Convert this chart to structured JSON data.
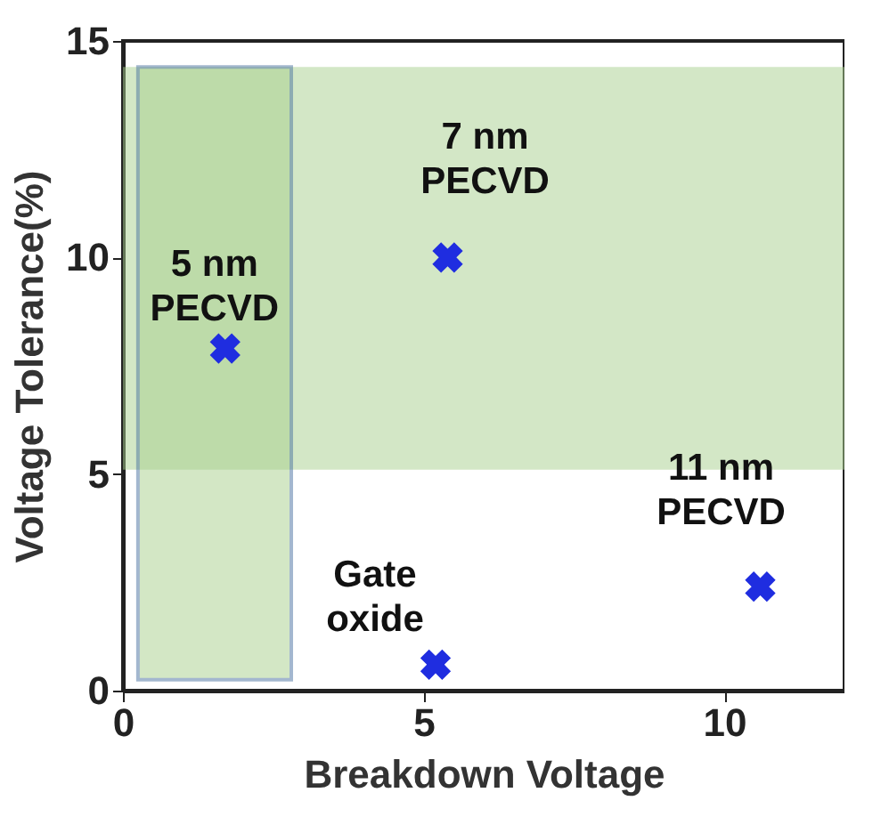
{
  "chart_data": {
    "type": "scatter",
    "xlabel": "Breakdown Voltage",
    "ylabel": "Voltage Tolerance(%)",
    "x": [
      1.7,
      5.4,
      5.2,
      10.6
    ],
    "series": [
      {
        "color": "#1f2de0",
        "values": [
          7.9,
          10.0,
          0.6,
          2.4
        ]
      }
    ],
    "marker": "cross",
    "grid": false,
    "xlim": [
      0,
      12
    ],
    "xticks": [
      0,
      5,
      10
    ],
    "ylim": [
      0,
      15
    ],
    "yticks": [
      0,
      5,
      10,
      15
    ],
    "bands": [
      {
        "axis": "y",
        "from": 5.1,
        "to": 14.4,
        "color": "#a8d08d"
      },
      {
        "axis": "x",
        "from": 0.25,
        "to": 2.8,
        "color": "#a8d08d"
      }
    ],
    "annotations": [
      {
        "text": "5 nm PECVD",
        "x": 1.7,
        "y": 7.9
      },
      {
        "text": "7 nm PECVD",
        "x": 5.4,
        "y": 10.0
      },
      {
        "text": "11 nm PECVD",
        "x": 10.6,
        "y": 2.4
      },
      {
        "text": "Gate oxide",
        "x": 5.2,
        "y": 0.6
      }
    ]
  }
}
